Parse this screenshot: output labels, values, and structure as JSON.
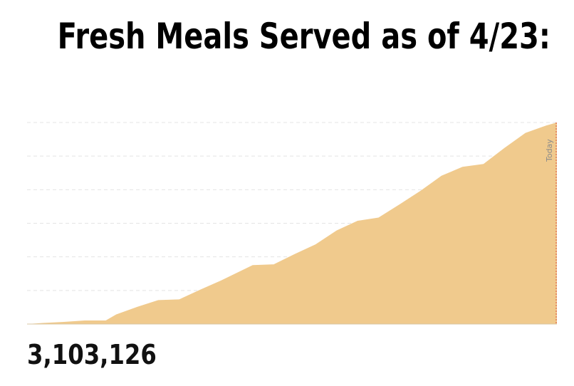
{
  "title": "Fresh Meals Served as of 4/23:",
  "total_label": "3,103,126",
  "colors": {
    "area_fill": "#f0ca8d",
    "grid": "#e4e4e4",
    "baseline": "#d9c7a4",
    "today_line": "#e0634a",
    "today_text": "#8a8a8a",
    "title": "#000000"
  },
  "chart_data": {
    "type": "area",
    "title": "Fresh Meals Served as of 4/23:",
    "xlabel": "",
    "ylabel": "",
    "grid": true,
    "legend": "none",
    "ylim": [
      0,
      3103126
    ],
    "x": [
      0,
      3,
      7,
      11,
      15,
      17,
      21,
      25,
      29,
      33,
      37,
      43,
      47,
      51,
      55,
      59,
      63,
      67,
      71,
      75,
      79,
      83,
      87,
      91,
      95,
      99,
      101
    ],
    "y": [
      0,
      16500,
      33000,
      55000,
      55000,
      148500,
      264000,
      368500,
      379500,
      528000,
      671000,
      907500,
      918500,
      1078000,
      1226500,
      1441000,
      1589500,
      1639000,
      1842500,
      2051500,
      2282500,
      2420000,
      2464000,
      2711500,
      2942500,
      3058000,
      3103126
    ],
    "annotations": [
      {
        "label": "Today"
      }
    ]
  }
}
